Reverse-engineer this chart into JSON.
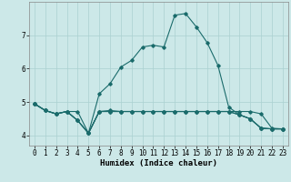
{
  "title": "",
  "xlabel": "Humidex (Indice chaleur)",
  "ylabel": "",
  "background_color": "#cce8e8",
  "grid_color": "#aad0d0",
  "line_color": "#1a6b6b",
  "x": [
    0,
    1,
    2,
    3,
    4,
    5,
    6,
    7,
    8,
    9,
    10,
    11,
    12,
    13,
    14,
    15,
    16,
    17,
    18,
    19,
    20,
    21,
    22,
    23
  ],
  "series": [
    [
      4.95,
      4.75,
      4.65,
      4.72,
      4.72,
      4.07,
      4.72,
      4.75,
      4.72,
      4.72,
      4.72,
      4.72,
      4.72,
      4.72,
      4.72,
      4.72,
      4.72,
      4.72,
      4.72,
      4.72,
      4.72,
      4.65,
      4.22,
      4.2
    ],
    [
      4.95,
      4.75,
      4.65,
      4.72,
      4.45,
      4.07,
      5.25,
      5.55,
      6.05,
      6.25,
      6.65,
      6.7,
      6.65,
      7.6,
      7.65,
      7.25,
      6.78,
      6.1,
      4.85,
      4.62,
      4.5,
      4.22,
      4.2,
      4.2
    ],
    [
      4.95,
      4.75,
      4.65,
      4.72,
      4.45,
      4.07,
      4.72,
      4.72,
      4.72,
      4.72,
      4.72,
      4.72,
      4.72,
      4.72,
      4.72,
      4.72,
      4.72,
      4.72,
      4.72,
      4.62,
      4.5,
      4.22,
      4.2,
      4.2
    ],
    [
      4.95,
      4.75,
      4.65,
      4.72,
      4.45,
      4.07,
      4.72,
      4.72,
      4.72,
      4.72,
      4.72,
      4.72,
      4.72,
      4.72,
      4.72,
      4.72,
      4.72,
      4.72,
      4.72,
      4.62,
      4.5,
      4.22,
      4.2,
      4.2
    ]
  ],
  "ylim": [
    3.7,
    8.0
  ],
  "yticks": [
    4,
    5,
    6,
    7
  ],
  "xlim": [
    -0.5,
    23.5
  ],
  "xticks": [
    0,
    1,
    2,
    3,
    4,
    5,
    6,
    7,
    8,
    9,
    10,
    11,
    12,
    13,
    14,
    15,
    16,
    17,
    18,
    19,
    20,
    21,
    22,
    23
  ],
  "tick_fontsize": 5.5,
  "label_fontsize": 6.5
}
